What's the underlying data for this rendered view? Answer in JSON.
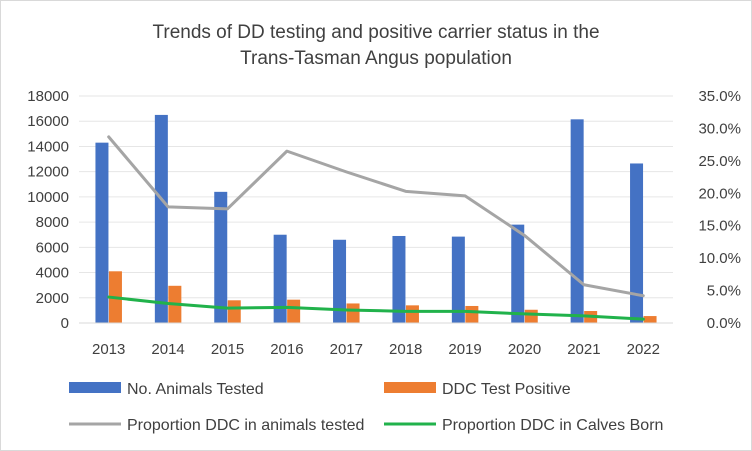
{
  "chart_data": {
    "type": "bar",
    "title_lines": [
      "Trends of DD testing and positive carrier status in the",
      "Trans-Tasman Angus population"
    ],
    "categories": [
      "2013",
      "2014",
      "2015",
      "2016",
      "2017",
      "2018",
      "2019",
      "2020",
      "2021",
      "2022"
    ],
    "ylim": [
      0,
      18000
    ],
    "yticks": [
      "0",
      "2000",
      "4000",
      "6000",
      "8000",
      "10000",
      "12000",
      "14000",
      "16000",
      "18000"
    ],
    "y2lim": [
      0,
      35
    ],
    "y2ticks": [
      "0.0%",
      "5.0%",
      "10.0%",
      "15.0%",
      "20.0%",
      "25.0%",
      "30.0%",
      "35.0%"
    ],
    "series": [
      {
        "name": "No. Animals Tested",
        "type": "bar",
        "axis": "left",
        "color": "#4472c4",
        "values": [
          14300,
          16500,
          10400,
          7000,
          6600,
          6900,
          6850,
          7800,
          16150,
          12650
        ]
      },
      {
        "name": "DDC Test Positive",
        "type": "bar",
        "axis": "left",
        "color": "#ed7d31",
        "values": [
          4100,
          2950,
          1800,
          1850,
          1550,
          1400,
          1350,
          1050,
          950,
          550
        ]
      },
      {
        "name": "Proportion DDC in animals tested",
        "type": "line",
        "axis": "right",
        "color": "#a5a5a5",
        "values": [
          28.7,
          17.9,
          17.6,
          26.5,
          23.3,
          20.3,
          19.6,
          13.5,
          5.9,
          4.2
        ]
      },
      {
        "name": "Proportion DDC in Calves Born",
        "type": "line",
        "axis": "right",
        "color": "#21b24b",
        "values": [
          4.0,
          3.0,
          2.3,
          2.4,
          2.0,
          1.8,
          1.8,
          1.4,
          1.1,
          0.6
        ]
      }
    ],
    "legend_position": "bottom"
  }
}
